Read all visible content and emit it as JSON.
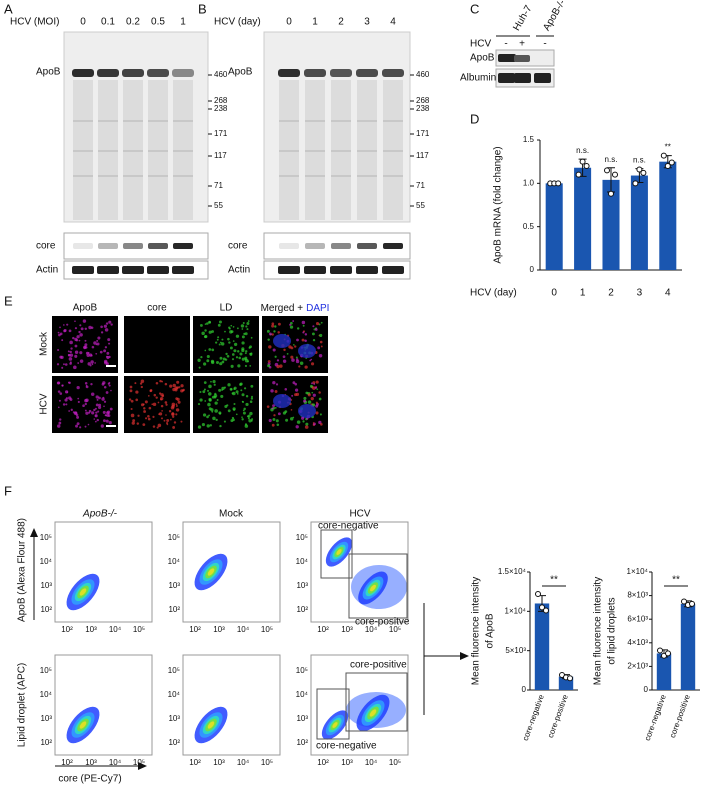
{
  "panel_labels": [
    "A",
    "B",
    "C",
    "D",
    "E",
    "F"
  ],
  "blot_a": {
    "condition": "HCV (MOI)",
    "lanes": [
      "0",
      "0.1",
      "0.2",
      "0.5",
      "1"
    ],
    "bands": [
      "ApoB",
      "core",
      "Actin"
    ],
    "markers": [
      460,
      268,
      238,
      171,
      117,
      71,
      55
    ]
  },
  "blot_b": {
    "condition": "HCV (day)",
    "lanes": [
      "0",
      "1",
      "2",
      "3",
      "4"
    ],
    "bands": [
      "ApoB",
      "core",
      "Actin"
    ],
    "markers": [
      460,
      268,
      238,
      171,
      117,
      71,
      55
    ]
  },
  "blot_c": {
    "cell_lines": [
      "Huh-7",
      "ApoB-/-"
    ],
    "treatment_label": "HCV",
    "treatment": [
      "-",
      "+",
      "-"
    ],
    "bands": [
      "ApoB",
      "Albumin"
    ]
  },
  "microscopy": {
    "channels": [
      "ApoB",
      "core",
      "LD"
    ],
    "merged": "Merged +",
    "dapi": "DAPI",
    "conditions": [
      "Mock",
      "HCV"
    ]
  },
  "flow": {
    "groups": [
      "ApoB-/-",
      "Mock",
      "HCV"
    ],
    "y_labels": [
      "ApoB (Alexa Flour 488)",
      "Lipid droplet (APC)"
    ],
    "x_label": "core (PE-Cy7)",
    "ticks": [
      "10²",
      "10³",
      "10⁴",
      "10⁵"
    ],
    "gate_labels": [
      [
        "core-negative",
        "core-positve"
      ],
      [
        "core-positive",
        "core-negative"
      ]
    ]
  },
  "chart_data": [
    {
      "type": "bar",
      "categories": [
        "0",
        "1",
        "2",
        "3",
        "4"
      ],
      "values": [
        1.0,
        1.18,
        1.04,
        1.09,
        1.25
      ],
      "errors": [
        0.01,
        0.1,
        0.14,
        0.08,
        0.07
      ],
      "points": [
        [
          1.0,
          1.0,
          1.0
        ],
        [
          1.1,
          1.25,
          1.2
        ],
        [
          1.15,
          0.88,
          1.1
        ],
        [
          1.0,
          1.16,
          1.12
        ],
        [
          1.32,
          1.2,
          1.24
        ]
      ],
      "annotations": [
        null,
        "n.s.",
        "n.s.",
        "n.s.",
        "**"
      ],
      "x_label": "HCV (day)",
      "y_label": "ApoB mRNA (fold change)",
      "color": "#1a56b0",
      "ylim": [
        0,
        1.5
      ],
      "yticks": [
        0,
        0.5,
        {
          "value": 1,
          "label": "1.0"
        },
        1.5
      ]
    },
    {
      "type": "bar",
      "categories": [
        "core-negative",
        "core-positive"
      ],
      "values": [
        11000,
        1700
      ],
      "errors": [
        1000,
        250
      ],
      "points": [
        [
          12200,
          10500,
          10100
        ],
        [
          1900,
          1600,
          1500
        ]
      ],
      "significance": "**",
      "y_label": [
        "Mean fluorence intensity",
        "of ApoB"
      ],
      "color": "#1a56b0",
      "ylim": [
        0,
        15000
      ],
      "yticks": [
        0,
        {
          "value": 5000,
          "label": "5×10³"
        },
        {
          "value": 10000,
          "label": "1×10⁴"
        },
        {
          "value": 15000,
          "label": "1.5×10⁴"
        }
      ]
    },
    {
      "type": "bar",
      "categories": [
        "core-negative",
        "core-positive"
      ],
      "values": [
        3100,
        7300
      ],
      "errors": [
        300,
        250
      ],
      "points": [
        [
          3350,
          2900,
          3100
        ],
        [
          7500,
          7200,
          7300
        ]
      ],
      "significance": "**",
      "y_label": [
        "Mean fluorence intensity",
        "of lipid droplets"
      ],
      "color": "#1a56b0",
      "ylim": [
        0,
        10000
      ],
      "yticks": [
        0,
        {
          "value": 2000,
          "label": "2×10³"
        },
        {
          "value": 4000,
          "label": "4×10³"
        },
        {
          "value": 6000,
          "label": "6×10³"
        },
        {
          "value": 8000,
          "label": "8×10³"
        },
        {
          "value": 10000,
          "label": "1×10⁴"
        }
      ]
    }
  ]
}
